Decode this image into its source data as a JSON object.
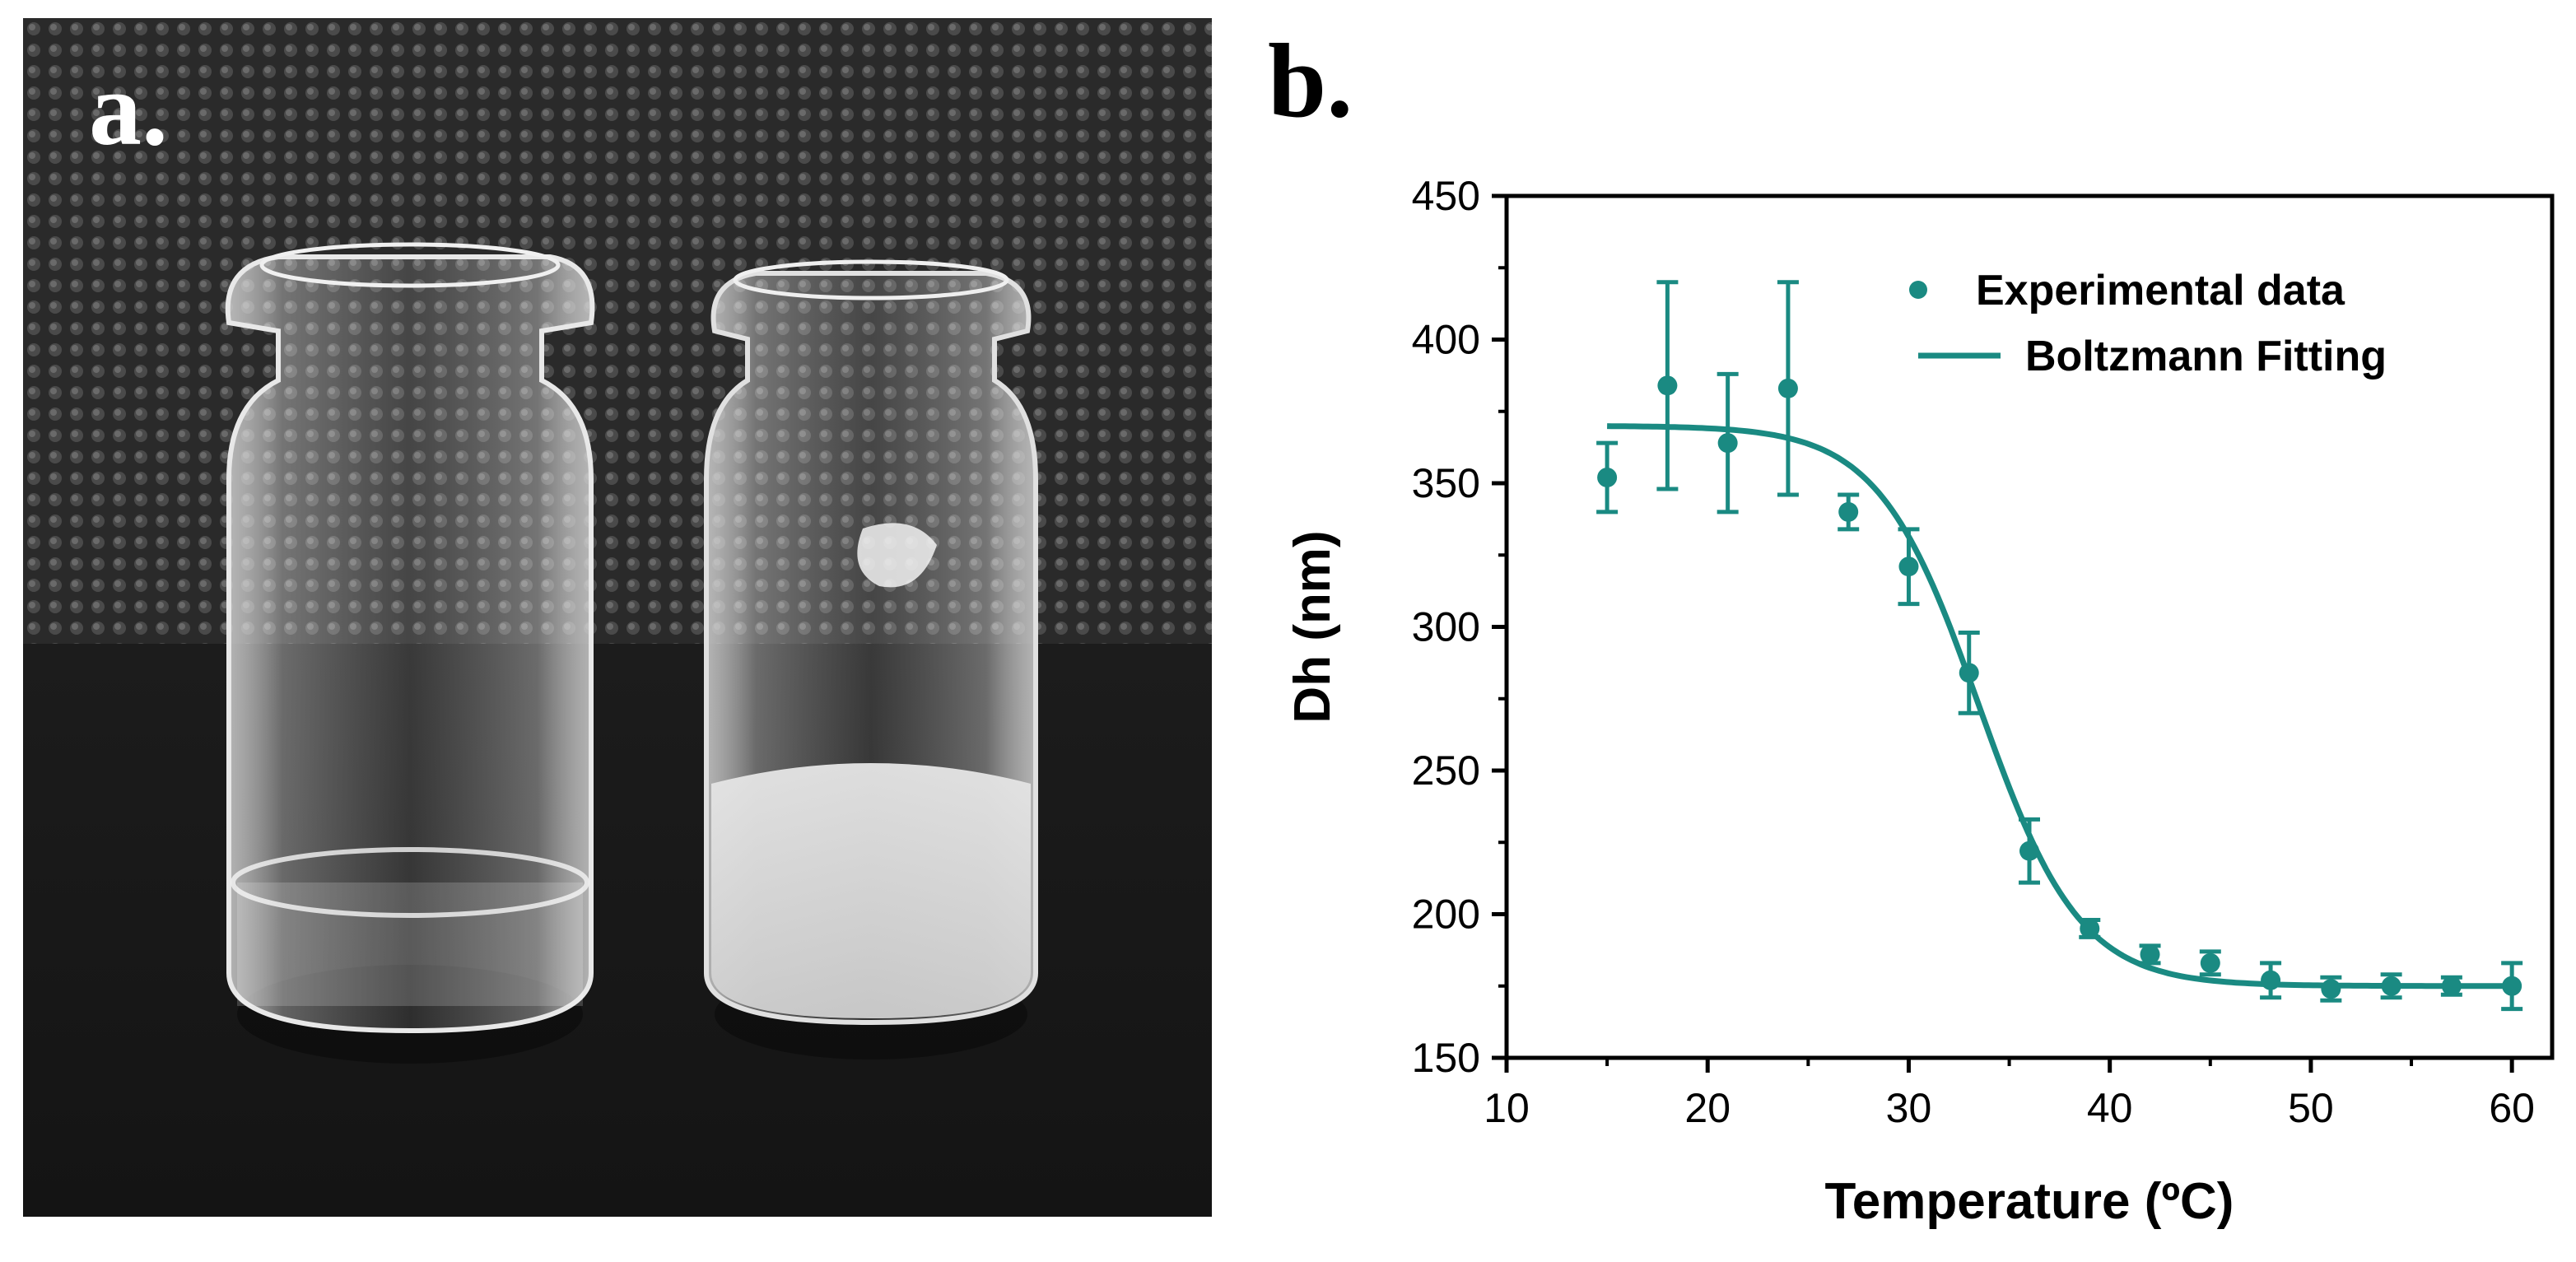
{
  "panel_a": {
    "label": "a.",
    "description_icon": "two-vials-photo-icon"
  },
  "panel_b": {
    "label": "b."
  },
  "colors": {
    "series": "#1a8a82",
    "axis": "#000000",
    "photo_bg": "#2c2c2c"
  },
  "chart_data": {
    "type": "scatter",
    "title": "",
    "xlabel": "Temperature (ºC)",
    "ylabel": "Dh (nm)",
    "xlim": [
      10,
      62
    ],
    "ylim": [
      150,
      450
    ],
    "xticks": [
      10,
      20,
      30,
      40,
      50,
      60
    ],
    "yticks": [
      150,
      200,
      250,
      300,
      350,
      400,
      450
    ],
    "grid": false,
    "legend_position": "top-right",
    "series": [
      {
        "name": "Experimental data",
        "kind": "points-with-errorbars",
        "x": [
          15,
          18,
          21,
          24,
          27,
          30,
          33,
          36,
          39,
          42,
          45,
          48,
          51,
          54,
          57,
          60
        ],
        "y": [
          352,
          384,
          364,
          383,
          340,
          321,
          284,
          222,
          195,
          186,
          183,
          177,
          174,
          175,
          175,
          175
        ],
        "err": [
          12,
          36,
          24,
          37,
          6,
          13,
          14,
          11,
          3,
          3,
          4,
          6,
          4,
          4,
          3,
          8
        ]
      },
      {
        "name": "Boltzmann Fitting",
        "kind": "line",
        "model": "boltzmann",
        "params": {
          "A1": 370,
          "A2": 175,
          "x0": 33.5,
          "dx": 2.5
        },
        "x_range": [
          15,
          60
        ]
      }
    ]
  }
}
